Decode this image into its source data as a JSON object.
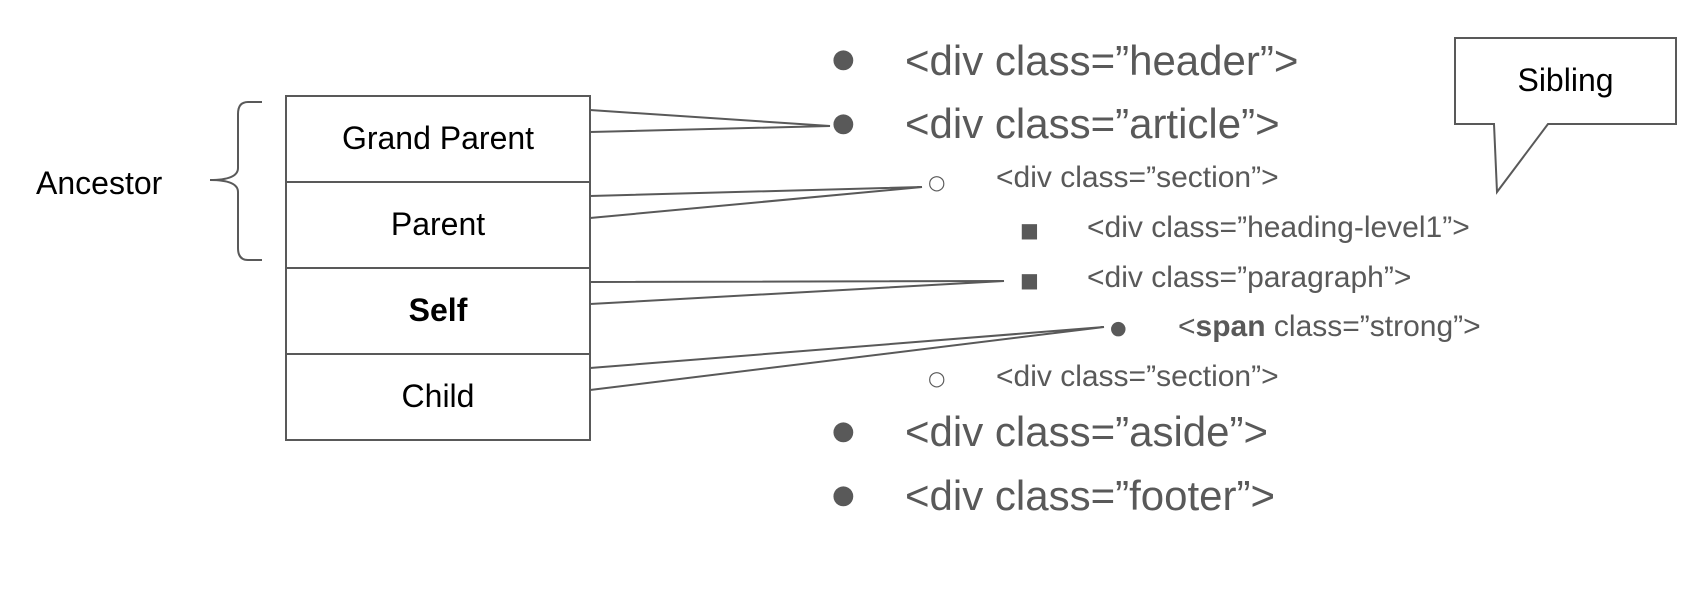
{
  "ancestor_label": "Ancestor",
  "boxes": [
    {
      "label": "Grand Parent"
    },
    {
      "label": "Parent"
    },
    {
      "label": "Self"
    },
    {
      "label": "Child"
    }
  ],
  "tree": {
    "header": "<div class=”header”>",
    "article": "<div class=”article”>",
    "section1": "<div class=”section”>",
    "heading": "<div class=”heading-level1”>",
    "paragraph": "<div class=”paragraph”>",
    "span_open": "<",
    "span_tag": "span",
    "span_rest": " class=”strong”>",
    "section2": "<div class=”section”>",
    "aside": "<div class=”aside”>",
    "footer": "<div class=”footer”>"
  },
  "bullets": {
    "disc": "●",
    "circle": "○",
    "square": "■"
  },
  "callout": "Sibling",
  "colors": {
    "text": "#595959",
    "lines": "#595959",
    "box_stroke": "#595959"
  }
}
